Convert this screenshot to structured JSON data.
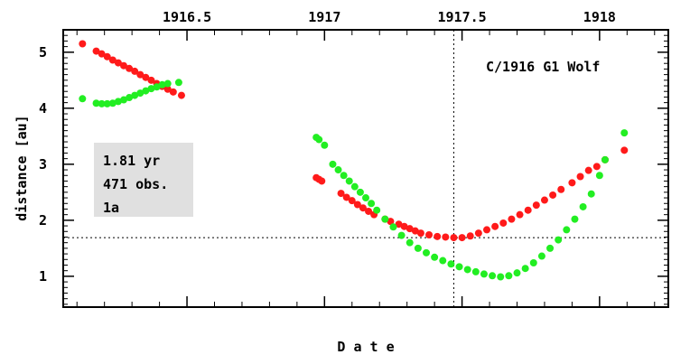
{
  "chart_data": {
    "type": "scatter",
    "title": "C/1916 G1 Wolf",
    "xlabel": "D a t e",
    "ylabel": "distance [au]",
    "xlim": [
      1916.05,
      1918.25
    ],
    "ylim": [
      0.45,
      5.4
    ],
    "x_ticks": [
      1916.5,
      1917,
      1917.5,
      1918
    ],
    "x_tick_labels": [
      "1916.5",
      "1917",
      "1917.5",
      "1918"
    ],
    "y_ticks": [
      1,
      2,
      3,
      4,
      5
    ],
    "y_tick_labels": [
      "1",
      "2",
      "3",
      "4",
      "5"
    ],
    "grid": false,
    "info_box": [
      "1.81 yr",
      "471 obs.",
      "1a"
    ],
    "reference_lines": {
      "vertical_x": 1917.47,
      "horizontal_y": 1.69
    },
    "colors": {
      "series_red": "#ff1a1a",
      "series_green": "#22ee22",
      "info_box_bg": "#e0e0e0"
    },
    "series": [
      {
        "color": "#ff1a1a",
        "points": [
          [
            1916.12,
            5.15
          ],
          [
            1916.17,
            5.02
          ],
          [
            1916.19,
            4.97
          ],
          [
            1916.21,
            4.92
          ],
          [
            1916.23,
            4.86
          ],
          [
            1916.25,
            4.81
          ],
          [
            1916.27,
            4.76
          ],
          [
            1916.29,
            4.71
          ],
          [
            1916.31,
            4.66
          ],
          [
            1916.33,
            4.6
          ],
          [
            1916.35,
            4.55
          ],
          [
            1916.37,
            4.5
          ],
          [
            1916.39,
            4.44
          ],
          [
            1916.41,
            4.39
          ],
          [
            1916.43,
            4.34
          ],
          [
            1916.45,
            4.29
          ],
          [
            1916.48,
            4.23
          ],
          [
            1916.97,
            2.76
          ],
          [
            1916.98,
            2.73
          ],
          [
            1916.99,
            2.7
          ],
          [
            1917.06,
            2.48
          ],
          [
            1917.08,
            2.41
          ],
          [
            1917.1,
            2.35
          ],
          [
            1917.12,
            2.28
          ],
          [
            1917.14,
            2.22
          ],
          [
            1917.16,
            2.16
          ],
          [
            1917.18,
            2.1
          ],
          [
            1917.22,
            2.02
          ],
          [
            1917.24,
            1.98
          ],
          [
            1917.27,
            1.93
          ],
          [
            1917.29,
            1.89
          ],
          [
            1917.31,
            1.85
          ],
          [
            1917.33,
            1.81
          ],
          [
            1917.35,
            1.77
          ],
          [
            1917.38,
            1.74
          ],
          [
            1917.41,
            1.71
          ],
          [
            1917.44,
            1.7
          ],
          [
            1917.47,
            1.69
          ],
          [
            1917.5,
            1.69
          ],
          [
            1917.53,
            1.72
          ],
          [
            1917.56,
            1.77
          ],
          [
            1917.59,
            1.83
          ],
          [
            1917.62,
            1.89
          ],
          [
            1917.65,
            1.95
          ],
          [
            1917.68,
            2.02
          ],
          [
            1917.71,
            2.1
          ],
          [
            1917.74,
            2.18
          ],
          [
            1917.77,
            2.27
          ],
          [
            1917.8,
            2.36
          ],
          [
            1917.83,
            2.45
          ],
          [
            1917.86,
            2.55
          ],
          [
            1917.9,
            2.67
          ],
          [
            1917.93,
            2.78
          ],
          [
            1917.96,
            2.89
          ],
          [
            1917.99,
            2.96
          ],
          [
            1918.02,
            3.08
          ],
          [
            1918.09,
            3.25
          ]
        ]
      },
      {
        "color": "#22ee22",
        "points": [
          [
            1916.12,
            4.17
          ],
          [
            1916.17,
            4.09
          ],
          [
            1916.19,
            4.08
          ],
          [
            1916.21,
            4.08
          ],
          [
            1916.23,
            4.09
          ],
          [
            1916.25,
            4.12
          ],
          [
            1916.27,
            4.15
          ],
          [
            1916.29,
            4.19
          ],
          [
            1916.31,
            4.23
          ],
          [
            1916.33,
            4.27
          ],
          [
            1916.35,
            4.31
          ],
          [
            1916.37,
            4.35
          ],
          [
            1916.39,
            4.38
          ],
          [
            1916.41,
            4.42
          ],
          [
            1916.43,
            4.44
          ],
          [
            1916.47,
            4.46
          ],
          [
            1916.97,
            3.48
          ],
          [
            1916.98,
            3.44
          ],
          [
            1917.0,
            3.34
          ],
          [
            1917.03,
            3.0
          ],
          [
            1917.05,
            2.9
          ],
          [
            1917.07,
            2.8
          ],
          [
            1917.09,
            2.7
          ],
          [
            1917.11,
            2.6
          ],
          [
            1917.13,
            2.5
          ],
          [
            1917.15,
            2.4
          ],
          [
            1917.17,
            2.3
          ],
          [
            1917.19,
            2.18
          ],
          [
            1917.22,
            2.02
          ],
          [
            1917.25,
            1.88
          ],
          [
            1917.28,
            1.73
          ],
          [
            1917.31,
            1.6
          ],
          [
            1917.34,
            1.5
          ],
          [
            1917.37,
            1.42
          ],
          [
            1917.4,
            1.34
          ],
          [
            1917.43,
            1.28
          ],
          [
            1917.46,
            1.22
          ],
          [
            1917.49,
            1.17
          ],
          [
            1917.52,
            1.12
          ],
          [
            1917.55,
            1.08
          ],
          [
            1917.58,
            1.04
          ],
          [
            1917.61,
            1.01
          ],
          [
            1917.64,
            0.99
          ],
          [
            1917.67,
            1.01
          ],
          [
            1917.7,
            1.06
          ],
          [
            1917.73,
            1.14
          ],
          [
            1917.76,
            1.24
          ],
          [
            1917.79,
            1.36
          ],
          [
            1917.82,
            1.5
          ],
          [
            1917.85,
            1.65
          ],
          [
            1917.88,
            1.83
          ],
          [
            1917.91,
            2.02
          ],
          [
            1917.94,
            2.24
          ],
          [
            1917.97,
            2.47
          ],
          [
            1918.0,
            2.8
          ],
          [
            1918.02,
            3.08
          ],
          [
            1918.09,
            3.56
          ]
        ]
      }
    ]
  }
}
